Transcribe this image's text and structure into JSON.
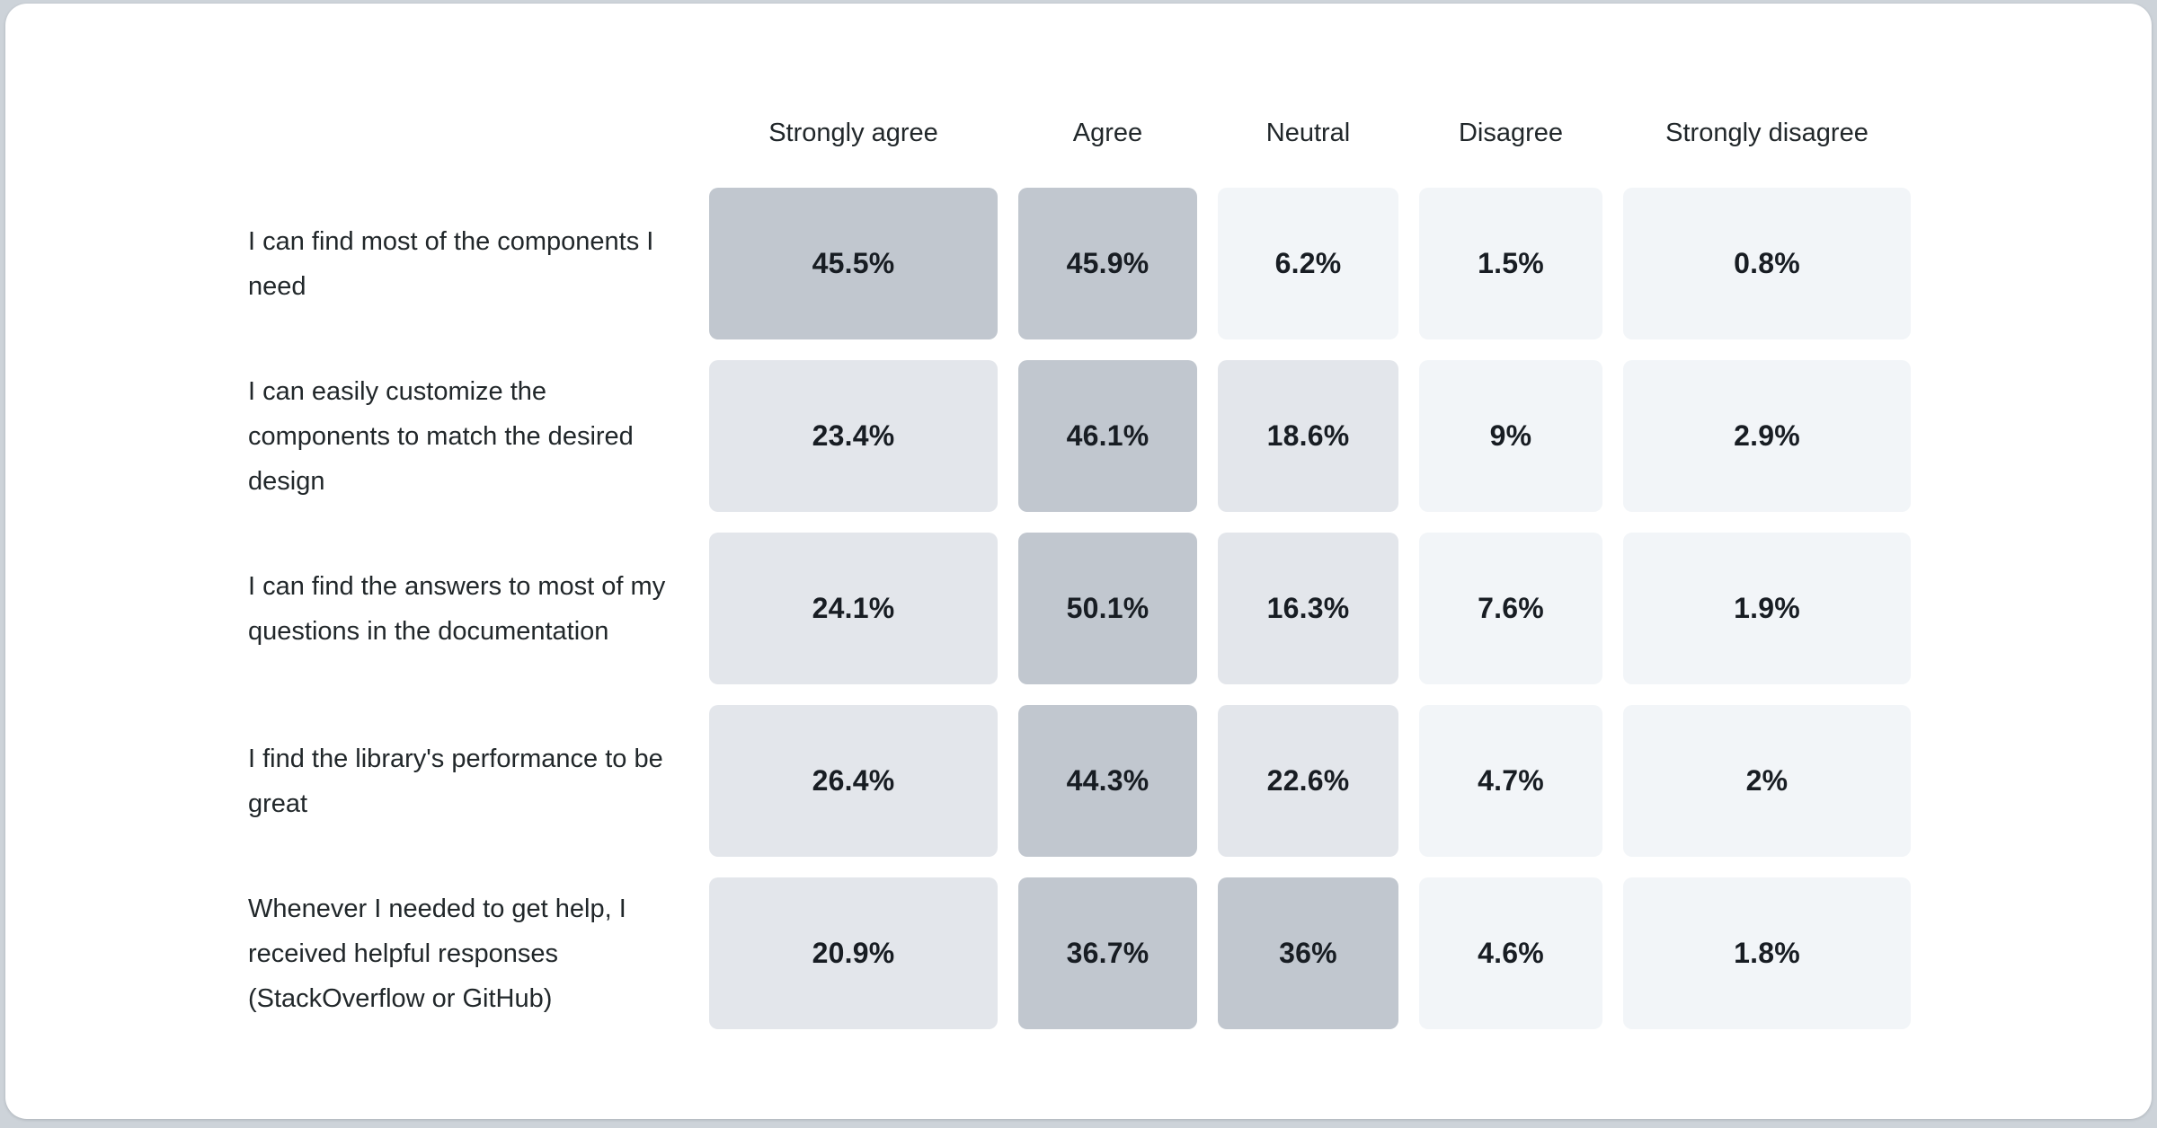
{
  "page": {
    "background_color": "#cdd3d9",
    "card_color": "#ffffff"
  },
  "chart_data": {
    "type": "heatmap",
    "columns": [
      "Strongly agree",
      "Agree",
      "Neutral",
      "Disagree",
      "Strongly disagree"
    ],
    "rows": [
      {
        "label": "I can find most of the components I need",
        "values": [
          45.5,
          45.9,
          6.2,
          1.5,
          0.8
        ],
        "display": [
          "45.5%",
          "45.9%",
          "6.2%",
          "1.5%",
          "0.8%"
        ]
      },
      {
        "label": "I can easily customize the components to match the desired design",
        "values": [
          23.4,
          46.1,
          18.6,
          9,
          2.9
        ],
        "display": [
          "23.4%",
          "46.1%",
          "18.6%",
          "9%",
          "2.9%"
        ]
      },
      {
        "label": "I can find the answers to most of my questions in the documentation",
        "values": [
          24.1,
          50.1,
          16.3,
          7.6,
          1.9
        ],
        "display": [
          "24.1%",
          "50.1%",
          "16.3%",
          "7.6%",
          "1.9%"
        ]
      },
      {
        "label": "I find the library's performance to be great",
        "values": [
          26.4,
          44.3,
          22.6,
          4.7,
          2
        ],
        "display": [
          "26.4%",
          "44.3%",
          "22.6%",
          "4.7%",
          "2%"
        ]
      },
      {
        "label": "Whenever I needed to get help, I received helpful responses (StackOverflow or GitHub)",
        "values": [
          20.9,
          36.7,
          36,
          4.6,
          1.8
        ],
        "display": [
          "20.9%",
          "36.7%",
          "36%",
          "4.6%",
          "1.8%"
        ]
      }
    ],
    "color_scale": {
      "bins": [
        {
          "max": 10,
          "color": "#f2f5f8"
        },
        {
          "max": 30,
          "color": "#e3e6eb"
        },
        {
          "max": 100,
          "color": "#c1c7cf"
        }
      ]
    },
    "value_text_color": "#181d23",
    "label_text_color": "#21272a",
    "grid": "off",
    "legend_position": "none",
    "title": "",
    "xlabel": "",
    "ylabel": ""
  }
}
